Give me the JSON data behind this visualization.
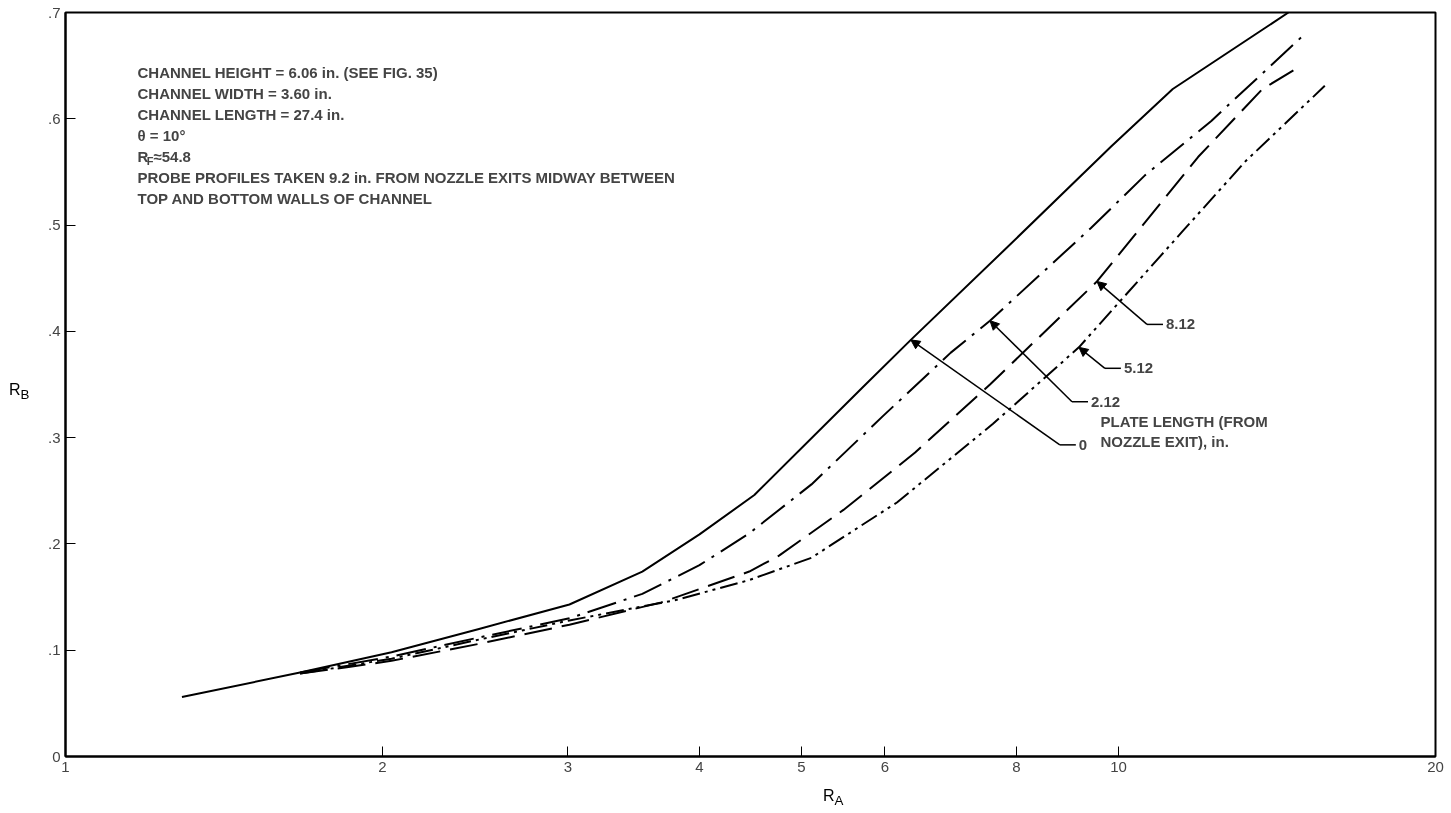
{
  "chart_data": {
    "type": "line",
    "xlabel": "R$_{A}$",
    "ylabel": "R$_{B}$",
    "log": "x",
    "legend_title": "PLATE LENGTH (FROM NOZZLE EXIT), in.",
    "xlim": [
      1,
      20
    ],
    "xticks": [
      1,
      2,
      3,
      4,
      5,
      6,
      8,
      10,
      20
    ],
    "ylim": [
      0,
      0.7
    ],
    "yticks": [
      {
        "value": 0,
        "label": "0"
      },
      {
        "value": 0.1,
        "label": ".1"
      },
      {
        "value": 0.2,
        "label": ".2"
      },
      {
        "value": 0.3,
        "label": ".3"
      },
      {
        "value": 0.4,
        "label": ".4"
      },
      {
        "value": 0.5,
        "label": ".5"
      },
      {
        "value": 0.6,
        "label": ".6"
      },
      {
        "value": 0.7,
        "label": ".7"
      }
    ],
    "grid": false,
    "marker": "none",
    "series": [
      {
        "color": "#000000",
        "line_style": "solid",
        "x": [
          1.29,
          1.67,
          2.04,
          2.47,
          3.01,
          3.53,
          4.0,
          4.51,
          5.71,
          6.35,
          7.8,
          9.84,
          11.26,
          14.5
        ],
        "values": [
          0.056,
          0.079,
          0.098,
          0.12,
          0.143,
          0.174,
          0.209,
          0.246,
          0.347,
          0.392,
          0.477,
          0.574,
          0.628,
          0.7
        ]
      },
      {
        "color": "#000000",
        "line_style": "dashdot",
        "x": [
          1.67,
          2.04,
          2.47,
          3.01,
          3.53,
          4.0,
          4.46,
          5.11,
          5.97,
          6.93,
          7.55,
          9.41,
          10.6,
          12.25,
          15.0
        ],
        "values": [
          0.079,
          0.094,
          0.112,
          0.13,
          0.153,
          0.18,
          0.21,
          0.256,
          0.32,
          0.38,
          0.41,
          0.497,
          0.547,
          0.598,
          0.679
        ]
      },
      {
        "color": "#000000",
        "line_style": "dashdotdot",
        "x": [
          1.67,
          2.04,
          2.47,
          3.01,
          3.79,
          4.46,
          5.11,
          6.16,
          7.6,
          9.17,
          11.5,
          13.2,
          15.7
        ],
        "values": [
          0.078,
          0.092,
          0.11,
          0.128,
          0.147,
          0.166,
          0.187,
          0.239,
          0.313,
          0.385,
          0.494,
          0.56,
          0.631
        ]
      },
      {
        "color": "#000000",
        "line_style": "dashed",
        "x": [
          1.67,
          1.85,
          2.04,
          2.47,
          3.01,
          3.68,
          4.46,
          4.76,
          5.48,
          6.41,
          7.55,
          9.54,
          11.9,
          13.7,
          14.8
        ],
        "values": [
          0.078,
          0.084,
          0.09,
          0.106,
          0.124,
          0.145,
          0.174,
          0.189,
          0.232,
          0.286,
          0.35,
          0.447,
          0.564,
          0.628,
          0.648
        ]
      }
    ],
    "annotations": [
      "CHANNEL HEIGHT = 6.06 in. (SEE FIG. 35)",
      "CHANNEL WIDTH = 3.60 in.",
      "CHANNEL LENGTH = 27.4 in.",
      "θ = 10°",
      "R$_{F}$≈54.8",
      "PROBE PROFILES TAKEN 9.2 in. FROM NOZZLE EXITS MIDWAY BETWEEN",
      "TOP AND BOTTOM WALLS OF CHANNEL",
      {
        "text": "0",
        "x": 6.35,
        "y": 0.392
      },
      {
        "text": "2.12",
        "x": 7.55,
        "y": 0.41
      },
      {
        "text": "8.12",
        "x": 9.54,
        "y": 0.447
      },
      {
        "text": "5.12",
        "x": 9.17,
        "y": 0.385
      }
    ]
  }
}
